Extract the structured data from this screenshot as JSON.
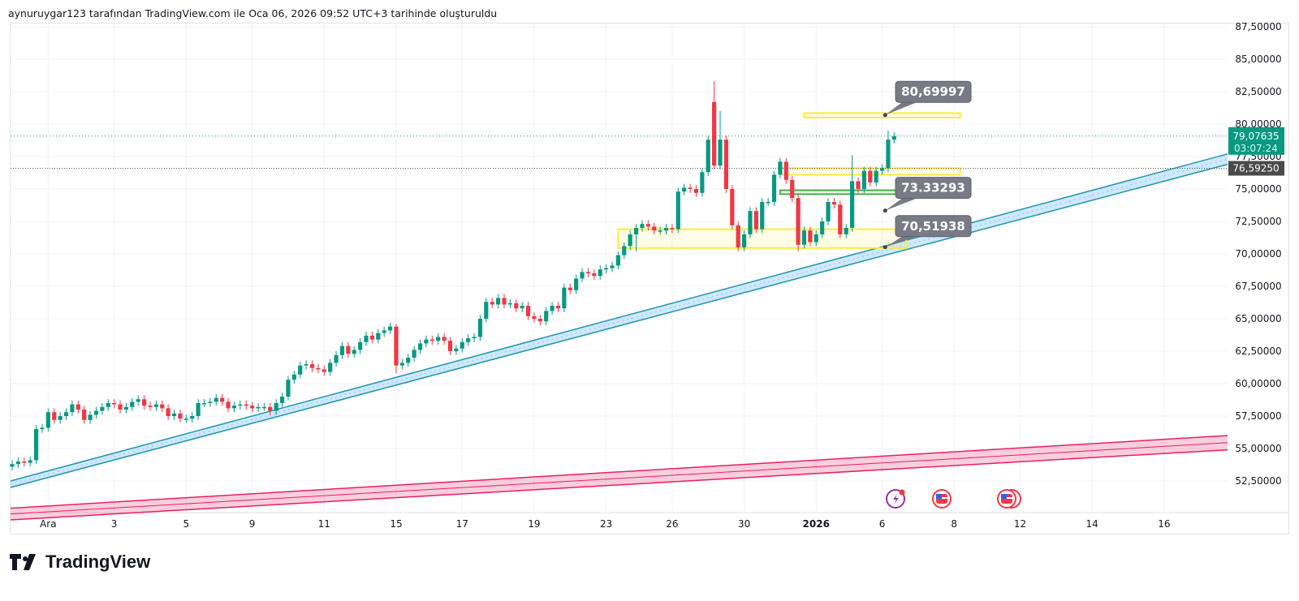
{
  "caption": "aynuruygar123 tarafından TradingView.com ile Oca 06, 2026 09:52 UTC+3 tarihinde oluşturuldu",
  "brand": "TradingView",
  "colors": {
    "up": "#089981",
    "down": "#f23645",
    "box": "#ffeb3b",
    "green_box": "#4caf50",
    "channel_up": "#2196a8",
    "channel_pink": "#e91e63",
    "label_bg": "#787b86",
    "last_price_bg": "#089981",
    "ref_price_bg": "#4a4a4a"
  },
  "chart_data": {
    "type": "candlestick",
    "ylim": [
      51.5,
      88
    ],
    "y_ticks": [
      "87,50000",
      "85,00000",
      "82,50000",
      "80,00000",
      "77,50000",
      "75,00000",
      "72,50000",
      "70,00000",
      "67,50000",
      "65,00000",
      "62,50000",
      "60,00000",
      "57,50000",
      "55,00000",
      "52,50000"
    ],
    "y_tick_values": [
      87.5,
      85,
      82.5,
      80,
      77.5,
      75,
      72.5,
      70,
      67.5,
      65,
      62.5,
      60,
      57.5,
      55,
      52.5
    ],
    "x_ticks": [
      {
        "label": "Ara",
        "candle": 6
      },
      {
        "label": "3",
        "candle": 17
      },
      {
        "label": "5",
        "candle": 29
      },
      {
        "label": "9",
        "candle": 40
      },
      {
        "label": "11",
        "candle": 52
      },
      {
        "label": "15",
        "candle": 64
      },
      {
        "label": "17",
        "candle": 75
      },
      {
        "label": "19",
        "candle": 87
      },
      {
        "label": "23",
        "candle": 99
      },
      {
        "label": "26",
        "candle": 110
      },
      {
        "label": "30",
        "candle": 122
      },
      {
        "label": "2026",
        "candle": 134,
        "bold": true
      },
      {
        "label": "6",
        "candle": 145
      },
      {
        "label": "8",
        "candle": 157
      },
      {
        "label": "12",
        "candle": 168
      },
      {
        "label": "14",
        "candle": 180
      },
      {
        "label": "16",
        "candle": 192
      }
    ],
    "first_open": 53.6,
    "closes": [
      53.8,
      54.0,
      53.9,
      54.1,
      56.5,
      56.6,
      57.8,
      57.2,
      57.5,
      57.8,
      58.4,
      58.0,
      57.2,
      57.6,
      57.9,
      58.2,
      58.5,
      58.4,
      58.0,
      58.2,
      58.6,
      58.8,
      58.3,
      58.2,
      58.4,
      58.1,
      57.5,
      57.7,
      57.3,
      57.3,
      57.5,
      58.5,
      58.5,
      58.6,
      58.9,
      58.6,
      58.1,
      58.3,
      58.4,
      58.3,
      58.1,
      58.2,
      58.2,
      57.9,
      58.5,
      59.0,
      60.3,
      60.7,
      61.4,
      61.5,
      61.2,
      61.1,
      60.9,
      61.6,
      62.2,
      62.9,
      62.3,
      62.6,
      63.2,
      63.7,
      63.4,
      63.9,
      64.1,
      64.4,
      61.4,
      61.6,
      62.0,
      62.6,
      63.1,
      63.4,
      63.3,
      63.6,
      63.3,
      62.5,
      62.7,
      63.2,
      63.5,
      63.6,
      65.0,
      66.3,
      66.1,
      66.6,
      66.1,
      66.2,
      65.8,
      66.0,
      65.2,
      65.0,
      64.8,
      65.6,
      66.0,
      65.8,
      67.4,
      67.2,
      68.1,
      68.6,
      68.5,
      68.3,
      68.8,
      68.9,
      69.1,
      69.9,
      70.6,
      71.5,
      72.0,
      72.3,
      72.1,
      71.8,
      71.8,
      72.0,
      71.9,
      74.8,
      75.1,
      75.0,
      74.7,
      76.3,
      78.8,
      76.8,
      78.8,
      75.0,
      72.2,
      70.5,
      71.5,
      73.3,
      71.9,
      74.0,
      74.0,
      76.1,
      77.1,
      75.7,
      74.3,
      70.7,
      71.8,
      70.9,
      71.5,
      72.5,
      74.0,
      73.8,
      71.5,
      72.0,
      75.6,
      75.0,
      76.4,
      75.5,
      76.4,
      76.6,
      78.8,
      79.07635
    ],
    "open_overrides": {
      "117": 81.7
    },
    "high_overrides": {
      "64": 64.6,
      "117": 83.3,
      "118": 81.0,
      "140": 77.6,
      "146": 79.5
    },
    "low_overrides": {
      "64": 60.8,
      "104": 70.2,
      "131": 70.2
    },
    "wick": 0.3,
    "last_price": {
      "value": 79.07635,
      "label": "79,07635",
      "countdown": "03:07:24"
    },
    "ref_price": {
      "value": 76.5925,
      "label": "76,59250"
    },
    "zones": [
      {
        "kind": "yellow",
        "from_candle": 132,
        "to_candle": 158,
        "top": 80.85,
        "bottom": 80.5
      },
      {
        "kind": "yellow",
        "from_candle": 128,
        "to_candle": 158,
        "top": 76.6,
        "bottom": 76.1
      },
      {
        "kind": "green",
        "from_candle": 128,
        "to_candle": 156,
        "top": 74.9,
        "bottom": 74.6
      },
      {
        "kind": "yellow-filled",
        "from_candle": 101,
        "to_candle": 149,
        "top": 71.9,
        "bottom": 70.45
      }
    ],
    "callouts": [
      {
        "label": "80,69997",
        "value": 80.69997,
        "candle": 147,
        "box_top": 83.3
      },
      {
        "label": "73.33293",
        "value": 73.33293,
        "candle": 147,
        "box_top": 75.9
      },
      {
        "label": "70,51938",
        "value": 70.51938,
        "candle": 147,
        "box_top": 72.95
      }
    ],
    "channels": [
      {
        "name": "uptrend-channel",
        "color": "#2196a8",
        "left": [
          52.5,
          52.0
        ],
        "right": [
          77.7,
          76.9
        ]
      },
      {
        "name": "long-term-channel",
        "color": "#e91e63",
        "left": [
          50.4,
          49.5
        ],
        "right": [
          56.0,
          54.9
        ]
      }
    ],
    "events": [
      "flash-event-icon",
      "us-flag-event-icon",
      "us-flag-event-icon"
    ]
  }
}
